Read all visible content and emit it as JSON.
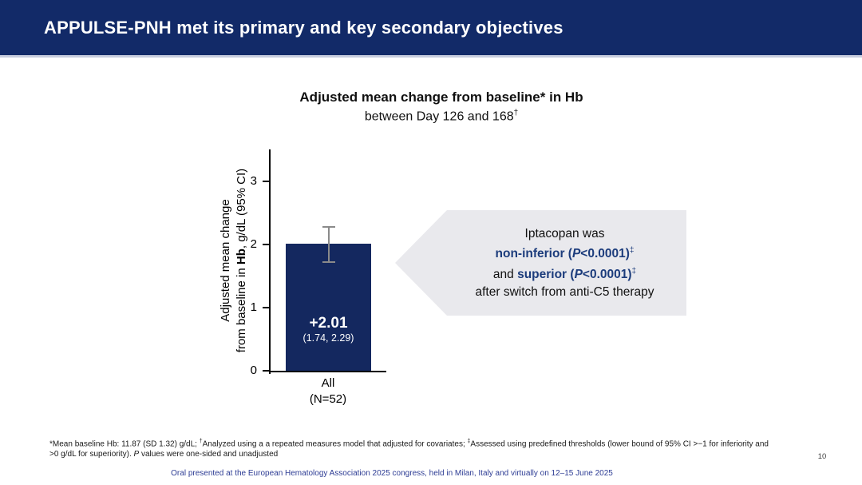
{
  "slide": {
    "header": {
      "title": "APPULSE-PNH met its primary and key secondary objectives"
    },
    "callout": {
      "line1": "Iptacopan was",
      "line2_bold1": "non-inferior (",
      "line2_p": "P",
      "line2_bold2": "<0.0001)",
      "line2_sup": "‡",
      "line3_plain": "and ",
      "line3_bold1": "superior (",
      "line3_p": "P",
      "line3_bold2": "<0.0001)",
      "line3_sup": "‡",
      "line4": "after switch from anti-C5 therapy"
    },
    "footnotes": {
      "line1_star": "*",
      "line1_part1": "Mean baseline Hb: 11.87 (SD 1.32) g/dL; ",
      "line1_sup1": "†",
      "line1_part2": "Analyzed using a a repeated measures model that adjusted for covariates; ",
      "line1_sup2": "‡",
      "line1_part3": "Assessed using predefined thresholds (lower bound of 95% CI >−1 for inferiority and",
      "line2_part1": ">0 g/dL for superiority). ",
      "line2_italic": "P",
      "line2_part2": " values were one-sided and unadjusted"
    },
    "page_number": "10",
    "footer": "Oral presented at the European Hematology Association 2025 congress, held in Milan, Italy and virtually on 12–15 June 2025"
  },
  "chart_data": {
    "type": "bar",
    "title": "Adjusted mean change from baseline* in Hb",
    "subtitle": "between Day 126 and 168",
    "subtitle_sup": "†",
    "ylabel_line1": "Adjusted mean change",
    "ylabel_line2_pre": "from baseline in ",
    "ylabel_line2_bold": "Hb",
    "ylabel_line2_post": ", g/dL (95% CI)",
    "categories": [
      "All"
    ],
    "category_sublabels": [
      "(N=52)"
    ],
    "values": [
      2.01
    ],
    "error_bars": [
      {
        "low": 1.74,
        "high": 2.29
      }
    ],
    "bar_labels": [
      "+2.01"
    ],
    "bar_sublabels": [
      "(1.74, 2.29)"
    ],
    "yticks": [
      0,
      1,
      2,
      3
    ],
    "ylim": [
      0,
      3.5
    ],
    "grid": false,
    "legend": false
  },
  "colors": {
    "header_navy": "#122a68",
    "bar_navy": "#14285f",
    "accent_blue": "#1c3c7c",
    "footer_blue": "#2d3c94",
    "callout_bg": "#e9e9ed",
    "error_bar_gray": "#8a8a8a"
  }
}
